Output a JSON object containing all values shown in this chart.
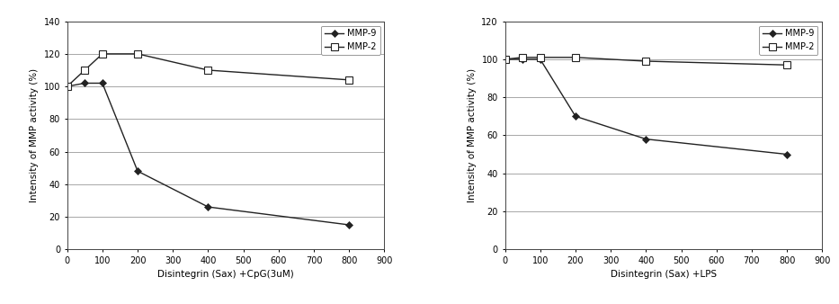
{
  "chart1": {
    "mmp9_x": [
      0,
      50,
      100,
      200,
      400,
      800
    ],
    "mmp9_y": [
      100,
      102,
      102,
      48,
      26,
      15
    ],
    "mmp2_x": [
      0,
      50,
      100,
      200,
      400,
      800
    ],
    "mmp2_y": [
      100,
      110,
      120,
      120,
      110,
      104
    ],
    "xlabel": "Disintegrin (Sax) +CpG(3uM)",
    "ylabel": "Intensity of MMP activity (%)",
    "xlim": [
      0,
      900
    ],
    "ylim": [
      0,
      140
    ],
    "yticks": [
      0,
      20,
      40,
      60,
      80,
      100,
      120,
      140
    ],
    "xticks": [
      0,
      100,
      200,
      300,
      400,
      500,
      600,
      700,
      800,
      900
    ]
  },
  "chart2": {
    "mmp9_x": [
      0,
      50,
      100,
      200,
      400,
      800
    ],
    "mmp9_y": [
      100,
      100,
      100,
      70,
      58,
      50
    ],
    "mmp2_x": [
      0,
      50,
      100,
      200,
      400,
      800
    ],
    "mmp2_y": [
      100,
      101,
      101,
      101,
      99,
      97
    ],
    "xlabel": "Disintegrin (Sax) +LPS",
    "ylabel": "Intensity of MMP activity (%)",
    "xlim": [
      0,
      900
    ],
    "ylim": [
      0,
      120
    ],
    "yticks": [
      0,
      20,
      40,
      60,
      80,
      100,
      120
    ],
    "xticks": [
      0,
      100,
      200,
      300,
      400,
      500,
      600,
      700,
      800,
      900
    ]
  },
  "legend_mmp9": "MMP-9",
  "legend_mmp2": "MMP-2",
  "line_color": "#222222",
  "bg_color": "#ffffff",
  "grid_color": "#999999",
  "fontsize_label": 7.5,
  "fontsize_tick": 7,
  "fontsize_legend": 7
}
